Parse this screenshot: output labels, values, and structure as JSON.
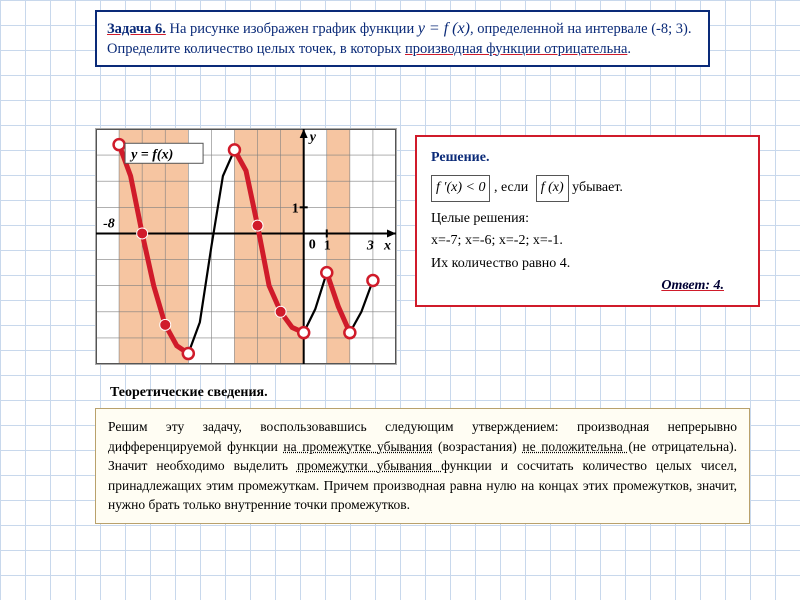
{
  "task": {
    "title": "Задача 6.",
    "body_a": "На рисунке изображен график функции ",
    "fx": "y = f (x)",
    "body_b": ", определенной на интервале (-8; 3). Определите количество целых  точек, в которых ",
    "cond": "производная функции отрицательна",
    "period": "."
  },
  "chart": {
    "label_function": "y = f(x)",
    "label_y": "y",
    "label_x": "x",
    "label_1": "1",
    "label_0": "0",
    "label_neg8": "-8",
    "label_3": "3",
    "x_domain": [
      -9,
      4
    ],
    "y_domain": [
      -5,
      4
    ],
    "grid_color": "#808080",
    "axis_color": "#000000",
    "curve_color": "#000000",
    "highlight_color": "#d01b2a",
    "band_fill": "#f4bb91",
    "band_alpha": 0.85,
    "open_dot_stroke": "#d01b2a",
    "filled_dot_fill": "#d01b2a",
    "bands_x": [
      [
        -8,
        -5
      ],
      [
        -3,
        0
      ],
      [
        1,
        2
      ]
    ],
    "curve_points": [
      [
        -8,
        3.4
      ],
      [
        -7.5,
        2.2
      ],
      [
        -7,
        0
      ],
      [
        -6.5,
        -2
      ],
      [
        -6,
        -3.5
      ],
      [
        -5.5,
        -4.3
      ],
      [
        -5,
        -4.6
      ],
      [
        -4.5,
        -3.4
      ],
      [
        -4,
        -0.5
      ],
      [
        -3.5,
        2.2
      ],
      [
        -3,
        3.2
      ],
      [
        -2.5,
        2.4
      ],
      [
        -2,
        0.3
      ],
      [
        -1.5,
        -2
      ],
      [
        -1,
        -3
      ],
      [
        -0.5,
        -3.6
      ],
      [
        0,
        -3.8
      ],
      [
        0.5,
        -2.9
      ],
      [
        1,
        -1.5
      ],
      [
        1.5,
        -2.8
      ],
      [
        2,
        -3.8
      ],
      [
        2.5,
        -3
      ],
      [
        3,
        -1.8
      ]
    ],
    "red_segments": [
      [
        [
          -8,
          3.4
        ],
        [
          -7.5,
          2.2
        ],
        [
          -7,
          0
        ],
        [
          -6.5,
          -2
        ],
        [
          -6,
          -3.5
        ],
        [
          -5.5,
          -4.3
        ],
        [
          -5,
          -4.6
        ]
      ],
      [
        [
          -3,
          3.2
        ],
        [
          -2.5,
          2.4
        ],
        [
          -2,
          0.3
        ],
        [
          -1.5,
          -2
        ],
        [
          -1,
          -3
        ],
        [
          -0.5,
          -3.6
        ],
        [
          0,
          -3.8
        ]
      ],
      [
        [
          1,
          -1.5
        ],
        [
          1.5,
          -2.8
        ],
        [
          2,
          -3.8
        ]
      ]
    ],
    "open_dots": [
      [
        -8,
        3.4
      ],
      [
        -5,
        -4.6
      ],
      [
        -3,
        3.2
      ],
      [
        0,
        -3.8
      ],
      [
        1,
        -1.5
      ],
      [
        2,
        -3.8
      ],
      [
        3,
        -1.8
      ]
    ],
    "filled_dots": [
      [
        -7,
        0
      ],
      [
        -6,
        -3.5
      ],
      [
        -2,
        0.3
      ],
      [
        -1,
        -3
      ]
    ]
  },
  "solution": {
    "title": "Решение.",
    "math1": "f ′(x) < 0",
    "mid": ", если",
    "math2": "f (x)",
    "tail": " убывает.",
    "line2": "Целые решения:",
    "line3": "x=-7; x=-6; x=-2; x=-1.",
    "line4": "Их количество равно 4.",
    "answer": "Ответ: 4."
  },
  "theory": {
    "title": "Теоретические сведения.",
    "text_a": "Решим эту задачу, воспользовавшись  следующим утверждением: производная непрерывно дифференцируемой функции ",
    "u1": "на промежутке убывания",
    "text_b": " (возрастания) ",
    "u2": "не положительна ",
    "text_c": "(не отрицательна). Значит необходимо выделить ",
    "u3": "промежутки убывания ",
    "text_d": "функции и сосчитать количество целых чисел, принадлежащих этим промежуткам. Причем производная равна нулю на концах этих промежутков,  значит, нужно брать только внутренние точки промежутков."
  }
}
